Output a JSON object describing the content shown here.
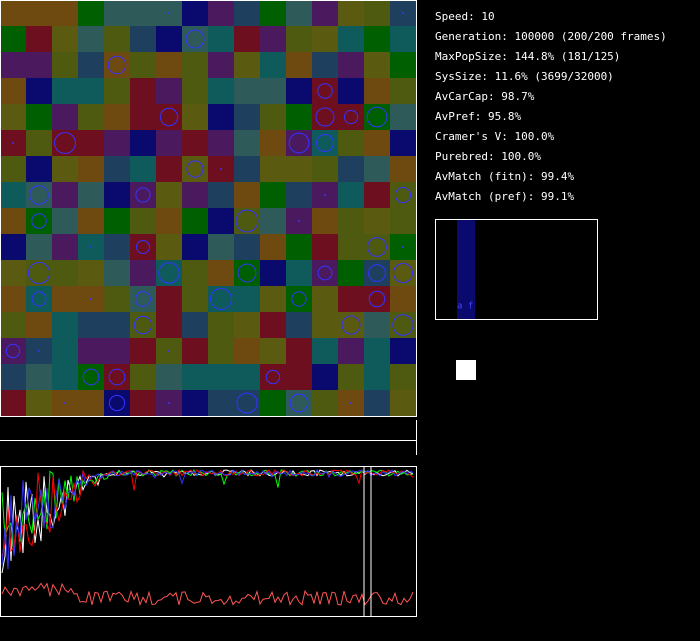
{
  "stats": [
    "Speed: 10",
    "Generation: 100000 (200/200 frames)",
    "MaxPopSize: 144.8% (181/125)",
    "SysSize: 11.6% (3699/32000)",
    "AvCarCap: 98.7%",
    "AvPref: 95.8%",
    "Cramer's V: 100.0%",
    "Purebred: 100.0%",
    "AvMatch (fitn): 99.4%",
    "AvMatch (pref): 99.1%"
  ],
  "histogram_label": "a f"
}
